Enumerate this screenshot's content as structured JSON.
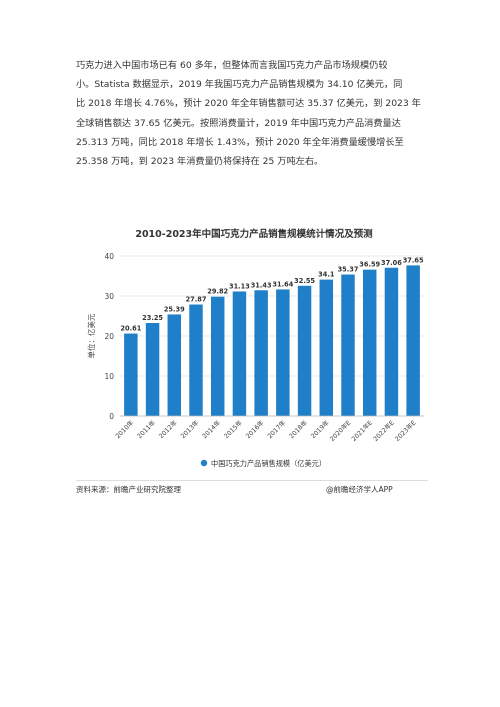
{
  "document": {
    "paragraph_lines": [
      "巧克力进入中国市场已有 60 多年，但整体而言我国巧克力产品市场规模仍较",
      "小。Statista 数据显示，2019 年我国巧克力产品销售规模为 34.10 亿美元，同",
      "比 2018 年增长 4.76%，预计 2020 年全年销售额可达 35.37 亿美元，到 2023 年",
      "全球销售额达 37.65 亿美元。按照消费量计，2019 年中国巧克力产品消费量达",
      "25.313 万吨，同比 2018 年增长 1.43%，预计 2020 年全年消费量缓慢增长至",
      "25.358 万吨，到 2023 年消费量仍将保持在 25 万吨左右。"
    ]
  },
  "source": {
    "left": "资料来源：前瞻产业研究院整理",
    "right": "@前瞻经济学人APP"
  },
  "chart_data": {
    "type": "bar",
    "title": "2010-2023年中国巧克力产品销售规模统计情况及预测",
    "ylabel": "单位：亿美元",
    "xlabel": "",
    "ylim": [
      0,
      40
    ],
    "yticks": [
      0,
      10,
      20,
      30,
      40
    ],
    "grid": true,
    "legend_placement": "bottom",
    "categories": [
      "2010年",
      "2011年",
      "2012年",
      "2013年",
      "2014年",
      "2015年",
      "2016年",
      "2017年",
      "2018年",
      "2019年",
      "2020年E",
      "2021年E",
      "2022年E",
      "2023年E"
    ],
    "series": [
      {
        "name": "中国巧克力产品销售规模（亿美元）",
        "color": "#1f7fc8",
        "values": [
          20.61,
          23.25,
          25.39,
          27.87,
          29.82,
          31.13,
          31.43,
          31.64,
          32.55,
          34.1,
          35.37,
          36.59,
          37.06,
          37.65
        ]
      }
    ],
    "data_labels": [
      "20.61",
      "23.25",
      "25.39",
      "27.87",
      "29.82",
      "31.13",
      "31.43",
      "31.64",
      "32.55",
      "34.1",
      "35.37",
      "36.59",
      "37.06",
      "37.65"
    ]
  }
}
